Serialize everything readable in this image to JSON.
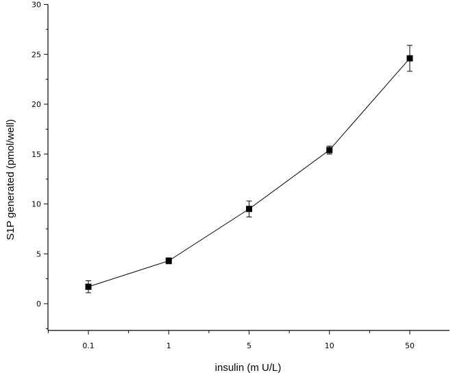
{
  "chart_data": {
    "type": "line",
    "xlabel": "insulin (m U/L)",
    "ylabel": "S1P generated (pmol/well)",
    "categories": [
      "0.1",
      "1",
      "5",
      "10",
      "50"
    ],
    "ylim": [
      -2.5,
      30
    ],
    "yticks": [
      0,
      5,
      10,
      15,
      20,
      25,
      30
    ],
    "series": [
      {
        "values": [
          1.7,
          4.3,
          9.5,
          15.4,
          24.6
        ],
        "errors": [
          0.6,
          0.3,
          0.8,
          0.4,
          1.3
        ]
      }
    ],
    "marker": "square",
    "grid": false,
    "legend": "none"
  }
}
